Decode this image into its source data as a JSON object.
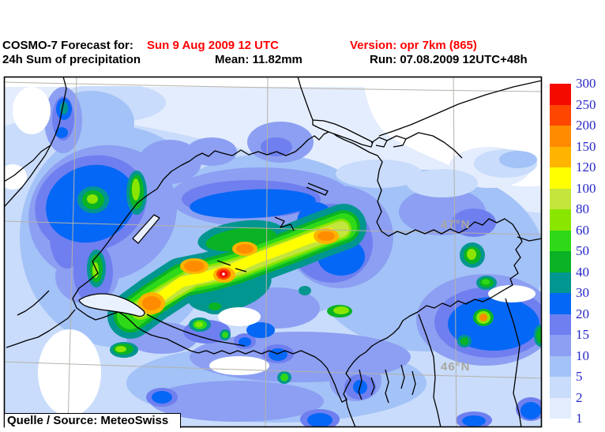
{
  "header": {
    "model_label": "COSMO-7 Forecast for:",
    "valid_time": "Sun 9 Aug 2009 12 UTC",
    "version_label": "Version: opr 7km (865)",
    "product": "24h Sum of precipitation",
    "mean_label": "Mean: 11.82mm",
    "run_label": "Run: 07.08.2009 12UTC+48h"
  },
  "map": {
    "lat_label_47": "47°N",
    "lat_label_46": "46°N",
    "source": "Quelle / Source: MeteoSwiss"
  },
  "legend": {
    "values": [
      300,
      250,
      200,
      150,
      120,
      100,
      80,
      60,
      50,
      40,
      30,
      20,
      15,
      10,
      5,
      2,
      1
    ],
    "colors": [
      "#F50A00",
      "#FF4600",
      "#FF8C00",
      "#FFB400",
      "#FFFF00",
      "#C3E53C",
      "#8AE600",
      "#30D918",
      "#0AB325",
      "#029690",
      "#0567F5",
      "#6F7FEF",
      "#8C9FF2",
      "#A3C2F7",
      "#C9DCFB",
      "#E4EDFD"
    ]
  },
  "colors": {
    "accent_red": "#FF0000",
    "legend_text_blue": "#2626C8",
    "grid_gray": "#B5B2AA",
    "lat_label_gray": "#ABA79D"
  }
}
